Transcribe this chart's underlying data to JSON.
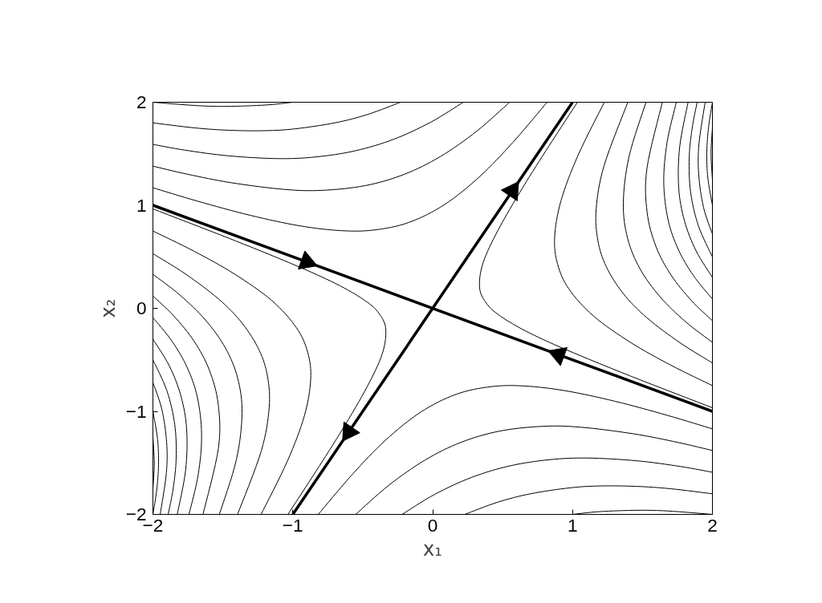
{
  "chart_data": {
    "type": "line",
    "xlabel": "x₁",
    "ylabel": "x₂",
    "xlim": [
      -2,
      2
    ],
    "ylim": [
      -2,
      2
    ],
    "xticks": [
      -2,
      -1,
      0,
      1,
      2
    ],
    "yticks": [
      -2,
      -1,
      0,
      1,
      2
    ],
    "grid": false,
    "series": [
      {
        "color": "#000000",
        "marker": "triangle",
        "x": [
          -2,
          -0.9,
          0.9,
          2
        ],
        "values": [
          1,
          0.45,
          -0.45,
          -1
        ]
      },
      {
        "color": "#000000",
        "marker": "triangle",
        "x": [
          -1,
          -0.6,
          0.57,
          1
        ],
        "values": [
          -2,
          -1.2,
          1.14,
          2
        ]
      },
      {
        "color": "#000000",
        "x": [
          -2,
          -1.683,
          -1.469,
          -1.195,
          -1.0
        ],
        "values": [
          2,
          1.967,
          1.96,
          1.973,
          2
        ]
      },
      {
        "color": "#000000",
        "x": [
          -2,
          -1.701,
          -1.455,
          -1.199,
          -0.984,
          -0.699,
          -0.464,
          -0.23
        ],
        "values": [
          1.8,
          1.751,
          1.728,
          1.724,
          1.742,
          1.8,
          1.882,
          2
        ]
      },
      {
        "color": "#000000",
        "x": [
          -2,
          -1.771,
          -1.46,
          -1.107,
          -0.837,
          -0.556,
          -0.28,
          -0.013,
          0.218
        ],
        "values": [
          1.591,
          1.535,
          1.48,
          1.453,
          1.469,
          1.528,
          1.64,
          1.807,
          2
        ]
      },
      {
        "color": "#000000",
        "x": [
          -2,
          -1.755,
          -1.436,
          -1.059,
          -0.791,
          -0.481,
          -0.202,
          0.055,
          0.314,
          0.55
        ],
        "values": [
          1.38,
          1.302,
          1.218,
          1.154,
          1.145,
          1.191,
          1.301,
          1.473,
          1.718,
          2
        ]
      },
      {
        "color": "#000000",
        "x": [
          -2,
          -1.678,
          -1.306,
          -0.952,
          -0.657,
          -0.419,
          -0.169,
          0.085,
          0.338,
          0.575,
          0.818
        ],
        "values": [
          1.17,
          1.039,
          0.903,
          0.801,
          0.754,
          0.76,
          0.834,
          1.007,
          1.281,
          1.613,
          2
        ]
      },
      {
        "color": "#000000",
        "x": [
          2,
          1.683,
          1.469,
          1.195,
          1.0
        ],
        "values": [
          -2,
          -1.967,
          -1.96,
          -1.973,
          -2
        ]
      },
      {
        "color": "#000000",
        "x": [
          2,
          1.701,
          1.455,
          1.199,
          0.984,
          0.699,
          0.464,
          0.23
        ],
        "values": [
          -1.8,
          -1.751,
          -1.728,
          -1.724,
          -1.742,
          -1.8,
          -1.882,
          -2
        ]
      },
      {
        "color": "#000000",
        "x": [
          2,
          1.771,
          1.46,
          1.107,
          0.837,
          0.556,
          0.28,
          0.013,
          -0.218
        ],
        "values": [
          -1.591,
          -1.535,
          -1.48,
          -1.453,
          -1.469,
          -1.528,
          -1.64,
          -1.807,
          -2
        ]
      },
      {
        "color": "#000000",
        "x": [
          2,
          1.755,
          1.436,
          1.059,
          0.791,
          0.481,
          0.202,
          -0.055,
          -0.314,
          -0.55
        ],
        "values": [
          -1.38,
          -1.302,
          -1.218,
          -1.154,
          -1.145,
          -1.191,
          -1.301,
          -1.473,
          -1.718,
          -2
        ]
      },
      {
        "color": "#000000",
        "x": [
          2,
          1.678,
          1.306,
          0.952,
          0.657,
          0.419,
          0.169,
          -0.085,
          -0.338,
          -0.575,
          -0.818
        ],
        "values": [
          -1.17,
          -1.039,
          -0.903,
          -0.801,
          -0.754,
          -0.76,
          -0.834,
          -1.007,
          -1.281,
          -1.613,
          -2
        ]
      },
      {
        "color": "#000000",
        "x": [
          2,
          1.41,
          0.957,
          0.663,
          0.467,
          0.378,
          0.335,
          0.361,
          0.47,
          0.646,
          0.835,
          1.035
        ],
        "values": [
          -0.965,
          -0.655,
          -0.403,
          -0.219,
          -0.059,
          0.061,
          0.207,
          0.444,
          0.765,
          1.177,
          1.583,
          2
        ]
      },
      {
        "color": "#000000",
        "x": [
          2,
          1.703,
          1.417,
          1.15,
          0.974,
          0.893,
          0.872,
          0.917,
          1.038,
          1.227
        ],
        "values": [
          -0.75,
          -0.552,
          -0.333,
          -0.075,
          0.188,
          0.429,
          0.689,
          1.042,
          1.481,
          2
        ]
      },
      {
        "color": "#000000",
        "x": [
          2,
          1.768,
          1.531,
          1.362,
          1.241,
          1.181,
          1.169,
          1.226,
          1.395
        ],
        "values": [
          -0.53,
          -0.334,
          -0.091,
          0.144,
          0.405,
          0.659,
          0.965,
          1.387,
          2
        ]
      },
      {
        "color": "#000000",
        "x": [
          2,
          1.807,
          1.625,
          1.482,
          1.394,
          1.363,
          1.404,
          1.525
        ],
        "values": [
          -0.33,
          -0.129,
          0.113,
          0.384,
          0.678,
          1.019,
          1.473,
          2
        ]
      },
      {
        "color": "#000000",
        "x": [
          2,
          1.85,
          1.704,
          1.596,
          1.533,
          1.532,
          1.642
        ],
        "values": [
          -0.12,
          0.075,
          0.323,
          0.602,
          0.934,
          1.359,
          2
        ]
      },
      {
        "color": "#000000",
        "x": [
          2,
          1.864,
          1.756,
          1.683,
          1.652,
          1.676,
          1.742
        ],
        "values": [
          0.09,
          0.318,
          0.572,
          0.859,
          1.224,
          1.612,
          2
        ]
      },
      {
        "color": "#000000",
        "x": [
          2,
          1.883,
          1.8,
          1.759,
          1.766,
          1.826
        ],
        "values": [
          0.3,
          0.558,
          0.85,
          1.17,
          1.567,
          2
        ]
      },
      {
        "color": "#000000",
        "x": [
          2,
          1.9,
          1.844,
          1.834,
          1.855,
          1.891
        ],
        "values": [
          0.5,
          0.8,
          1.128,
          1.458,
          1.747,
          2
        ]
      },
      {
        "color": "#000000",
        "x": [
          2,
          1.936,
          1.902,
          1.904,
          1.948
        ],
        "values": [
          0.72,
          0.982,
          1.299,
          1.598,
          2
        ]
      },
      {
        "color": "#000000",
        "x": [
          2,
          1.967,
          1.96,
          1.973,
          2
        ],
        "values": [
          1,
          1.267,
          1.52,
          1.764,
          2
        ]
      },
      {
        "color": "#000000",
        "x": [
          2,
          1.99,
          2
        ],
        "values": [
          1.25,
          1.505,
          1.75
        ]
      },
      {
        "color": "#000000",
        "x": [
          -2,
          -1.41,
          -0.957,
          -0.663,
          -0.467,
          -0.378,
          -0.335,
          -0.361,
          -0.47,
          -0.646,
          -0.835,
          -1.035
        ],
        "values": [
          0.965,
          0.655,
          0.403,
          0.219,
          0.059,
          -0.061,
          -0.207,
          -0.444,
          -0.765,
          -1.177,
          -1.583,
          -2
        ]
      },
      {
        "color": "#000000",
        "x": [
          -2,
          -1.703,
          -1.417,
          -1.15,
          -0.974,
          -0.893,
          -0.872,
          -0.917,
          -1.038,
          -1.227
        ],
        "values": [
          0.75,
          0.552,
          0.333,
          0.075,
          -0.188,
          -0.429,
          -0.689,
          -1.042,
          -1.481,
          -2
        ]
      },
      {
        "color": "#000000",
        "x": [
          -2,
          -1.768,
          -1.531,
          -1.362,
          -1.241,
          -1.181,
          -1.169,
          -1.226,
          -1.395
        ],
        "values": [
          0.53,
          0.334,
          0.091,
          -0.144,
          -0.405,
          -0.659,
          -0.965,
          -1.387,
          -2
        ]
      },
      {
        "color": "#000000",
        "x": [
          -2,
          -1.807,
          -1.625,
          -1.482,
          -1.394,
          -1.363,
          -1.404,
          -1.525
        ],
        "values": [
          0.33,
          0.129,
          -0.113,
          -0.384,
          -0.678,
          -1.019,
          -1.473,
          -2
        ]
      },
      {
        "color": "#000000",
        "x": [
          -2,
          -1.85,
          -1.704,
          -1.596,
          -1.533,
          -1.532,
          -1.642
        ],
        "values": [
          0.12,
          -0.075,
          -0.323,
          -0.602,
          -0.934,
          -1.359,
          -2
        ]
      },
      {
        "color": "#000000",
        "x": [
          -2,
          -1.864,
          -1.756,
          -1.683,
          -1.652,
          -1.676,
          -1.742
        ],
        "values": [
          -0.09,
          -0.318,
          -0.572,
          -0.859,
          -1.224,
          -1.612,
          -2
        ]
      },
      {
        "color": "#000000",
        "x": [
          -2,
          -1.883,
          -1.8,
          -1.759,
          -1.766,
          -1.826
        ],
        "values": [
          -0.3,
          -0.558,
          -0.85,
          -1.17,
          -1.567,
          -2
        ]
      },
      {
        "color": "#000000",
        "x": [
          -2,
          -1.9,
          -1.844,
          -1.834,
          -1.855,
          -1.891
        ],
        "values": [
          -0.5,
          -0.8,
          -1.128,
          -1.458,
          -1.747,
          -2
        ]
      },
      {
        "color": "#000000",
        "x": [
          -2,
          -1.936,
          -1.902,
          -1.904,
          -1.948
        ],
        "values": [
          -0.72,
          -0.982,
          -1.299,
          -1.598,
          -2
        ]
      },
      {
        "color": "#000000",
        "x": [
          -2,
          -1.967,
          -1.96,
          -1.973,
          -2
        ],
        "values": [
          -1,
          -1.267,
          -1.52,
          -1.764,
          -2
        ]
      },
      {
        "color": "#000000",
        "x": [
          -2,
          -1.99,
          -2
        ],
        "values": [
          -1.25,
          -1.505,
          -1.75
        ]
      }
    ]
  }
}
